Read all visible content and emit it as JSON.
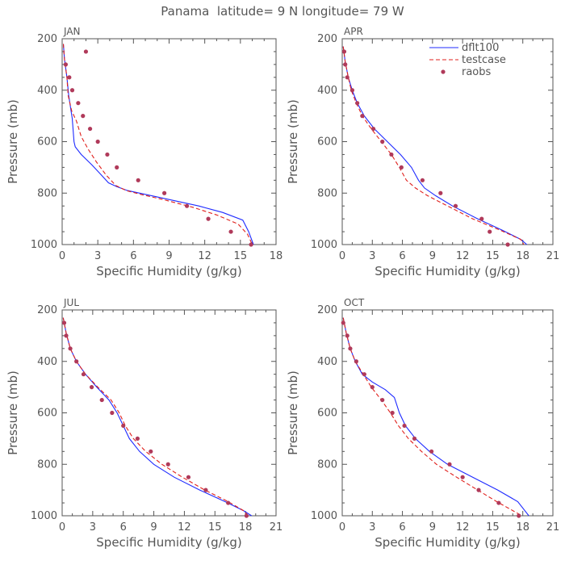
{
  "figure": {
    "title": "Panama  latitude= 9 N longitude= 79 W"
  },
  "legend": {
    "items": [
      {
        "label": "dflt100",
        "color": "#1f2bff",
        "style": "solid"
      },
      {
        "label": "testcase",
        "color": "#e0201c",
        "style": "dashed"
      },
      {
        "label": "raobs",
        "color": "#b03a5a",
        "style": "marker"
      }
    ]
  },
  "chart_data": [
    {
      "type": "line",
      "panel_label": "JAN",
      "xlabel": "Specific Humidity (g/kg)",
      "ylabel": "Pressure (mb)",
      "xlim": [
        0,
        18
      ],
      "ylim": [
        1000,
        200
      ],
      "xticks": [
        "0",
        "3",
        "6",
        "9",
        "12",
        "15",
        "18"
      ],
      "yticks": [
        "200",
        "400",
        "600",
        "800",
        "1000"
      ],
      "series": [
        {
          "name": "dflt100",
          "x": [
            0.1,
            0.2,
            0.4,
            0.55,
            0.75,
            0.85,
            1.0,
            1.1,
            1.6,
            2.5,
            3.3,
            3.9,
            4.6,
            5.5,
            7.0,
            9.0,
            11.5,
            13.5,
            15.2,
            15.7,
            16.1
          ],
          "y": [
            220,
            280,
            350,
            420,
            480,
            510,
            600,
            620,
            650,
            690,
            730,
            760,
            775,
            790,
            805,
            825,
            850,
            875,
            905,
            950,
            1000
          ]
        },
        {
          "name": "testcase",
          "x": [
            0.1,
            0.2,
            0.4,
            0.5,
            0.8,
            1.2,
            1.6,
            2.2,
            2.9,
            3.7,
            4.5,
            5.4,
            6.6,
            8.5,
            11.0,
            13.0,
            14.8,
            15.6,
            16.0
          ],
          "y": [
            220,
            280,
            350,
            420,
            480,
            520,
            580,
            630,
            680,
            730,
            770,
            790,
            805,
            825,
            855,
            885,
            920,
            960,
            1000
          ]
        },
        {
          "name": "raobs",
          "x": [
            2.0,
            0.3,
            0.6,
            0.85,
            1.35,
            1.75,
            2.35,
            3.0,
            3.8,
            4.6,
            6.4,
            8.6,
            10.5,
            12.3,
            14.2,
            15.9
          ],
          "y": [
            250,
            300,
            350,
            400,
            450,
            500,
            550,
            600,
            650,
            700,
            750,
            800,
            850,
            900,
            950,
            1000
          ]
        }
      ]
    },
    {
      "type": "line",
      "panel_label": "APR",
      "xlabel": "Specific Humidity (g/kg)",
      "ylabel": "Pressure (mb)",
      "xlim": [
        0,
        21
      ],
      "ylim": [
        1000,
        200
      ],
      "xticks": [
        "0",
        "3",
        "6",
        "9",
        "12",
        "15",
        "18",
        "21"
      ],
      "yticks": [
        "200",
        "400",
        "600",
        "800",
        "1000"
      ],
      "series": [
        {
          "name": "dflt100",
          "x": [
            0.1,
            0.3,
            0.6,
            1.0,
            1.5,
            2.2,
            3.2,
            4.5,
            5.8,
            6.9,
            7.6,
            8.2,
            9.3,
            11.0,
            13.5,
            16.0,
            17.8,
            18.4
          ],
          "y": [
            230,
            290,
            350,
            400,
            450,
            500,
            550,
            600,
            650,
            700,
            750,
            780,
            810,
            850,
            900,
            945,
            980,
            1000
          ]
        },
        {
          "name": "testcase",
          "x": [
            0.1,
            0.3,
            0.6,
            0.9,
            1.4,
            2.0,
            2.9,
            3.9,
            4.9,
            5.7,
            6.4,
            7.3,
            8.5,
            10.5,
            13.0,
            15.8,
            17.8,
            18.1
          ],
          "y": [
            230,
            290,
            350,
            400,
            450,
            500,
            550,
            600,
            650,
            700,
            750,
            780,
            810,
            850,
            900,
            945,
            980,
            1000
          ]
        },
        {
          "name": "raobs",
          "x": [
            0.2,
            0.3,
            0.5,
            1.0,
            1.5,
            2.0,
            3.1,
            4.0,
            4.9,
            5.9,
            8.0,
            9.8,
            11.3,
            13.9,
            14.7,
            16.5
          ],
          "y": [
            250,
            300,
            350,
            400,
            450,
            500,
            550,
            600,
            650,
            700,
            750,
            800,
            850,
            900,
            950,
            1000
          ]
        }
      ]
    },
    {
      "type": "line",
      "panel_label": "JUL",
      "xlabel": "Specific Humidity (g/kg)",
      "ylabel": "Pressure (mb)",
      "xlim": [
        0,
        21
      ],
      "ylim": [
        1000,
        200
      ],
      "xticks": [
        "0",
        "3",
        "6",
        "9",
        "12",
        "15",
        "18",
        "21"
      ],
      "yticks": [
        "200",
        "400",
        "600",
        "800",
        "1000"
      ],
      "series": [
        {
          "name": "dflt100",
          "x": [
            0.1,
            0.4,
            0.8,
            1.4,
            2.3,
            3.4,
            4.6,
            5.4,
            6.0,
            6.6,
            7.6,
            9.0,
            11.0,
            13.5,
            16.0,
            17.8,
            18.6
          ],
          "y": [
            230,
            290,
            350,
            400,
            450,
            500,
            550,
            600,
            650,
            700,
            750,
            800,
            850,
            900,
            945,
            980,
            1000
          ]
        },
        {
          "name": "testcase",
          "x": [
            0.1,
            0.4,
            0.8,
            1.4,
            2.3,
            3.5,
            4.8,
            5.6,
            6.2,
            7.0,
            8.2,
            9.8,
            11.8,
            14.0,
            16.3,
            17.8,
            18.3
          ],
          "y": [
            230,
            290,
            350,
            400,
            450,
            500,
            550,
            600,
            650,
            700,
            750,
            800,
            850,
            900,
            945,
            980,
            1000
          ]
        },
        {
          "name": "raobs",
          "x": [
            0.2,
            0.4,
            0.8,
            1.4,
            2.1,
            2.9,
            3.9,
            4.9,
            6.0,
            7.4,
            8.7,
            10.4,
            12.4,
            14.1,
            16.3,
            18.1
          ],
          "y": [
            250,
            300,
            350,
            400,
            450,
            500,
            550,
            600,
            650,
            700,
            750,
            800,
            850,
            900,
            950,
            1000
          ]
        }
      ]
    },
    {
      "type": "line",
      "panel_label": "OCT",
      "xlabel": "Specific Humidity (g/kg)",
      "ylabel": "Pressure (mb)",
      "xlim": [
        0,
        21
      ],
      "ylim": [
        1000,
        200
      ],
      "xticks": [
        "0",
        "3",
        "6",
        "9",
        "12",
        "15",
        "18",
        "21"
      ],
      "yticks": [
        "200",
        "400",
        "600",
        "800",
        "1000"
      ],
      "series": [
        {
          "name": "dflt100",
          "x": [
            0.1,
            0.4,
            0.8,
            1.3,
            2.0,
            3.0,
            4.3,
            5.2,
            5.7,
            6.3,
            7.3,
            8.7,
            10.5,
            13.0,
            15.5,
            17.5,
            18.6
          ],
          "y": [
            230,
            290,
            350,
            400,
            450,
            480,
            510,
            540,
            600,
            650,
            700,
            750,
            800,
            850,
            900,
            945,
            1000
          ]
        },
        {
          "name": "testcase",
          "x": [
            0.1,
            0.4,
            0.8,
            1.3,
            2.1,
            2.9,
            3.9,
            4.8,
            5.6,
            6.6,
            7.9,
            9.4,
            11.4,
            13.5,
            15.4,
            17.0,
            17.9
          ],
          "y": [
            230,
            290,
            350,
            400,
            450,
            500,
            550,
            600,
            650,
            700,
            750,
            800,
            850,
            900,
            945,
            980,
            1000
          ]
        },
        {
          "name": "raobs",
          "x": [
            0.1,
            0.5,
            0.8,
            1.4,
            2.2,
            3.0,
            4.0,
            5.0,
            6.2,
            7.2,
            8.9,
            10.7,
            12.0,
            13.6,
            15.6,
            17.6
          ],
          "y": [
            250,
            300,
            350,
            400,
            450,
            500,
            550,
            600,
            650,
            700,
            750,
            800,
            850,
            900,
            950,
            1000
          ]
        }
      ]
    }
  ]
}
